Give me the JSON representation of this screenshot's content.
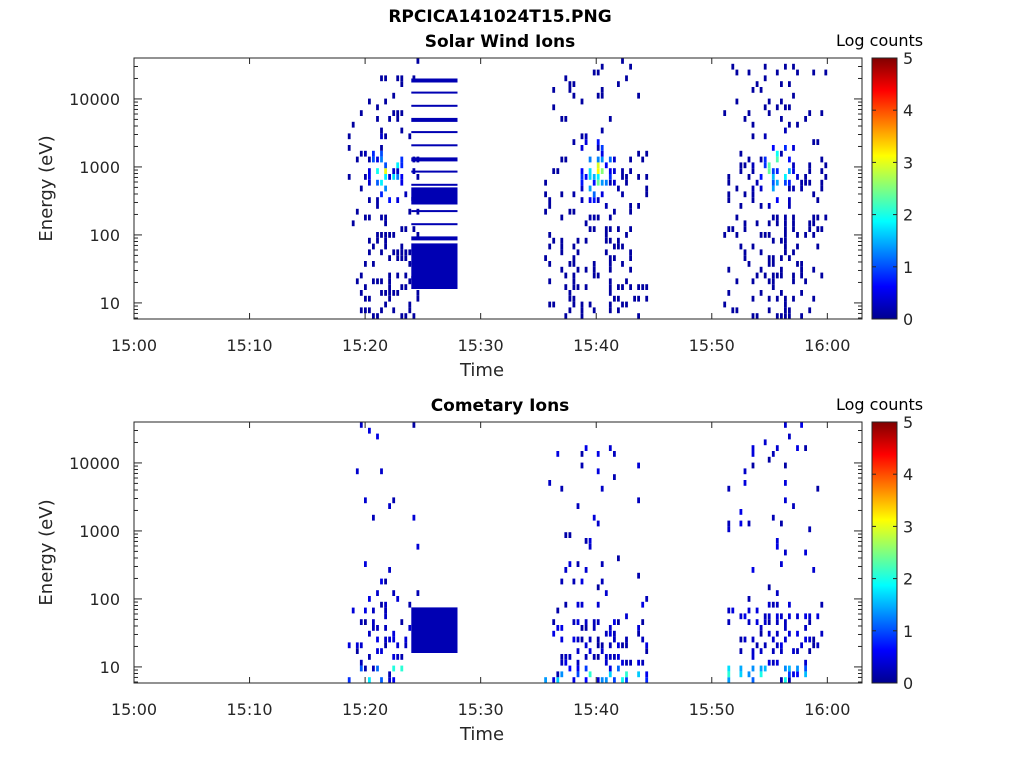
{
  "figure": {
    "title": "RPCICA141024T15.PNG"
  },
  "colorbar": {
    "label": "Log counts",
    "ticks": [
      "0",
      "1",
      "2",
      "3",
      "4",
      "5"
    ],
    "range": [
      0,
      5
    ]
  },
  "chart_data": [
    {
      "type": "heatmap",
      "title": "Solar Wind Ions",
      "xlabel": "Time",
      "ylabel": "Energy (eV)",
      "xticks": [
        "15:00",
        "15:10",
        "15:20",
        "15:30",
        "15:40",
        "15:50",
        "16:00"
      ],
      "xlim": [
        "15:00",
        "16:03"
      ],
      "yscale": "log",
      "yticks": [
        "10",
        "100",
        "1000",
        "10000"
      ],
      "ylim": [
        5.8,
        40000
      ],
      "zlabel": "Log counts",
      "zlim": [
        0,
        5
      ],
      "sweeps": [
        {
          "start": "15:18.5",
          "end": "15:24.5",
          "mid": "15:21.8",
          "peak_energy": 900,
          "peak_log_counts": 2.3
        },
        {
          "start": "15:35.5",
          "end": "15:44.5",
          "mid": "15:40.0",
          "peak_energy": 900,
          "peak_log_counts": 2.3
        },
        {
          "start": "15:51.0",
          "end": "16:00.0",
          "mid": "15:55.5",
          "peak_energy": 900,
          "peak_log_counts": 2.3
        }
      ],
      "band_block": {
        "start": "15:24.0",
        "end": "15:28.0",
        "energy_range": [
          16,
          20000
        ],
        "log_counts": 0.2
      }
    },
    {
      "type": "heatmap",
      "title": "Cometary Ions",
      "xlabel": "Time",
      "ylabel": "Energy (eV)",
      "xticks": [
        "15:00",
        "15:10",
        "15:20",
        "15:30",
        "15:40",
        "15:50",
        "16:00"
      ],
      "xlim": [
        "15:00",
        "16:03"
      ],
      "yscale": "log",
      "yticks": [
        "10",
        "100",
        "1000",
        "10000"
      ],
      "ylim": [
        5.8,
        40000
      ],
      "zlabel": "Log counts",
      "zlim": [
        0,
        5
      ],
      "sweeps": [
        {
          "start": "15:18.5",
          "end": "15:24.5",
          "mid": "15:21.8",
          "peak_energy": 10,
          "peak_log_counts": 2.0
        },
        {
          "start": "15:35.5",
          "end": "15:44.5",
          "mid": "15:40.0",
          "peak_energy": 10,
          "peak_log_counts": 2.0
        },
        {
          "start": "15:51.0",
          "end": "16:00.0",
          "mid": "15:55.5",
          "peak_energy": 10,
          "peak_log_counts": 2.0
        }
      ],
      "band_block": {
        "start": "15:24.0",
        "end": "15:28.0",
        "energy_range": [
          16,
          75
        ],
        "log_counts": 0.2
      }
    }
  ]
}
